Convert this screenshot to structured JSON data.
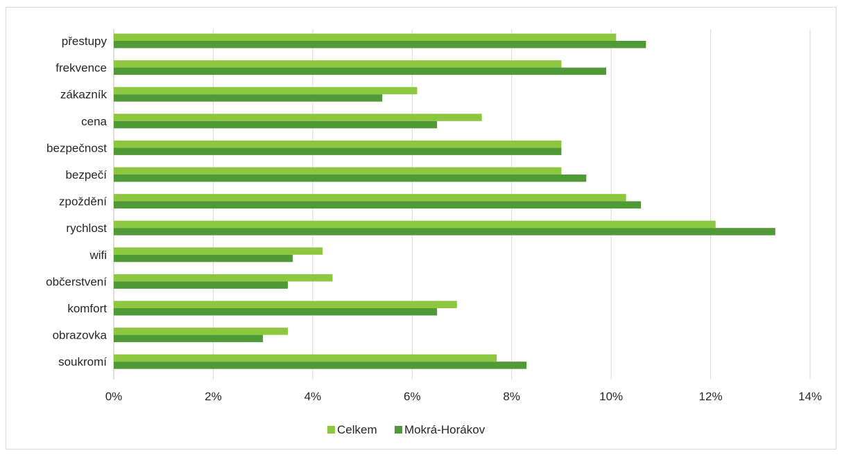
{
  "chart_data": {
    "type": "bar",
    "orientation": "horizontal",
    "categories": [
      "přestupy",
      "frekvence",
      "zákazník",
      "cena",
      "bezpečnost",
      "bezpečí",
      "zpoždění",
      "rychlost",
      "wifi",
      "občerstvení",
      "komfort",
      "obrazovka",
      "soukromí"
    ],
    "series": [
      {
        "name": "Celkem",
        "color": "#8dc63f",
        "values": [
          10.1,
          9.0,
          6.1,
          7.4,
          9.0,
          9.0,
          10.3,
          12.1,
          4.2,
          4.4,
          6.9,
          3.5,
          7.7
        ]
      },
      {
        "name": "Mokrá-Horákov",
        "color": "#4f9a37",
        "values": [
          10.7,
          9.9,
          5.4,
          6.5,
          9.0,
          9.5,
          10.6,
          13.3,
          3.6,
          3.5,
          6.5,
          3.0,
          8.3
        ]
      }
    ],
    "xticks": [
      "0%",
      "2%",
      "4%",
      "6%",
      "8%",
      "10%",
      "12%",
      "14%"
    ],
    "xlim": [
      0,
      14
    ],
    "unit": "%",
    "grid": true,
    "legend": "bottom"
  }
}
